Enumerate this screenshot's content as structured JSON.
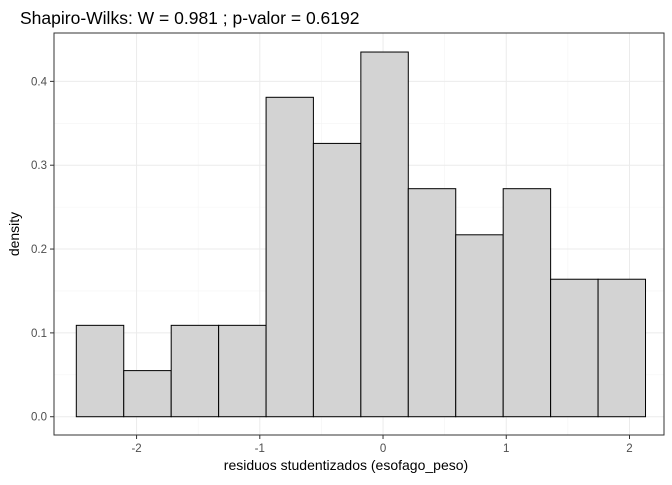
{
  "chart_data": {
    "type": "bar",
    "title": "Shapiro-Wilks: W =  0.981 ; p-valor =  0.6192",
    "xlabel": "residuos studentizados (esofago_peso)",
    "ylabel": "density",
    "xlim": [
      -2.67,
      2.28
    ],
    "ylim": [
      -0.0218,
      0.4577
    ],
    "x_ticks": [
      -2,
      -1,
      0,
      1,
      2
    ],
    "x_tick_labels": [
      "-2",
      "-1",
      "0",
      "1",
      "2"
    ],
    "y_ticks": [
      0.0,
      0.1,
      0.2,
      0.3,
      0.4
    ],
    "y_tick_labels": [
      "0.0",
      "0.1",
      "0.2",
      "0.3",
      "0.4"
    ],
    "grid": true,
    "bar_fill": "#d3d3d3",
    "bar_outline": "#000000",
    "bins": [
      {
        "x0": -2.489,
        "x1": -2.104,
        "density": 0.109
      },
      {
        "x0": -2.104,
        "x1": -1.719,
        "density": 0.055
      },
      {
        "x0": -1.719,
        "x1": -1.334,
        "density": 0.109
      },
      {
        "x0": -1.334,
        "x1": -0.949,
        "density": 0.109
      },
      {
        "x0": -0.949,
        "x1": -0.565,
        "density": 0.381
      },
      {
        "x0": -0.565,
        "x1": -0.18,
        "density": 0.326
      },
      {
        "x0": -0.18,
        "x1": 0.205,
        "density": 0.435
      },
      {
        "x0": 0.205,
        "x1": 0.59,
        "density": 0.272
      },
      {
        "x0": 0.59,
        "x1": 0.975,
        "density": 0.217
      },
      {
        "x0": 0.975,
        "x1": 1.36,
        "density": 0.272
      },
      {
        "x0": 1.36,
        "x1": 1.745,
        "density": 0.164
      },
      {
        "x0": 1.745,
        "x1": 2.13,
        "density": 0.164
      }
    ]
  }
}
